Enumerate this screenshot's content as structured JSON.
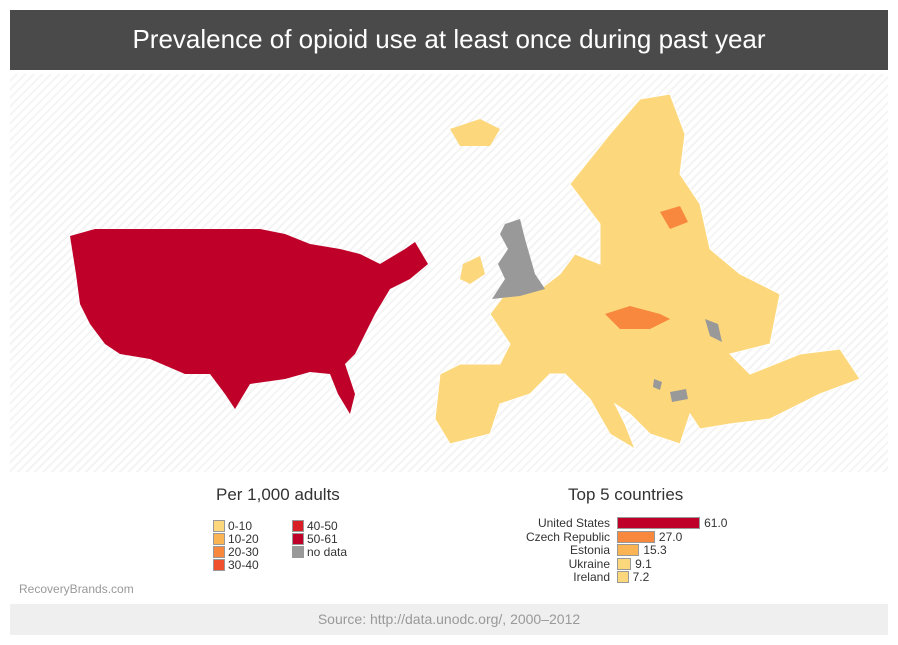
{
  "title": "Prevalence of opioid use at least once during past year",
  "legend": {
    "title": "Per 1,000 adults",
    "items": [
      {
        "label": "0-10",
        "color": "#fdd77b"
      },
      {
        "label": "10-20",
        "color": "#fbb454"
      },
      {
        "label": "20-30",
        "color": "#f7883d"
      },
      {
        "label": "30-40",
        "color": "#f0502d"
      },
      {
        "label": "40-50",
        "color": "#d91f26"
      },
      {
        "label": "50-61",
        "color": "#bf0029"
      },
      {
        "label": "no data",
        "color": "#999999"
      }
    ]
  },
  "map": {
    "regions": [
      {
        "name": "United States",
        "bin": "50-61"
      },
      {
        "name": "Czech Republic",
        "bin": "20-30"
      },
      {
        "name": "Estonia",
        "bin": "10-20"
      },
      {
        "name": "United Kingdom",
        "bin": "no data"
      },
      {
        "name": "Moldova",
        "bin": "no data"
      },
      {
        "name": "Europe (rest)",
        "bin": "0-10"
      }
    ]
  },
  "chart_data": {
    "type": "bar",
    "title": "Top 5 countries",
    "orientation": "horizontal",
    "categories": [
      "United States",
      "Czech Republic",
      "Estonia",
      "Ukraine",
      "Ireland"
    ],
    "values": [
      61.0,
      27.0,
      15.3,
      9.1,
      7.2
    ],
    "value_labels": [
      "61.0",
      "27.0",
      "15.3",
      "9.1",
      "7.2"
    ],
    "colors": [
      "#bf0029",
      "#f7883d",
      "#fbb454",
      "#fdd77b",
      "#fdd77b"
    ]
  },
  "brand": "RecoveryBrands.com",
  "source": "Source: http://data.unodc.org/, 2000–2012"
}
